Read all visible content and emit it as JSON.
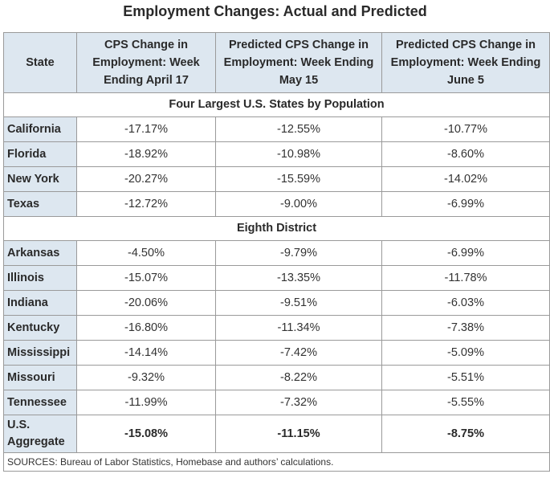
{
  "title": "Employment Changes: Actual and Predicted",
  "headers": {
    "state": "State",
    "col1": "CPS Change in Employment: Week Ending April 17",
    "col2": "Predicted CPS Change in Employment: Week Ending May 15",
    "col3": "Predicted CPS Change in Employment: Week Ending June 5"
  },
  "sections": [
    {
      "label": "Four Largest U.S. States by Population",
      "rows": [
        {
          "state": "California",
          "v1": "-17.17%",
          "v2": "-12.55%",
          "v3": "-10.77%"
        },
        {
          "state": "Florida",
          "v1": "-18.92%",
          "v2": "-10.98%",
          "v3": "-8.60%"
        },
        {
          "state": "New York",
          "v1": "-20.27%",
          "v2": "-15.59%",
          "v3": "-14.02%"
        },
        {
          "state": "Texas",
          "v1": "-12.72%",
          "v2": "-9.00%",
          "v3": "-6.99%"
        }
      ]
    },
    {
      "label": "Eighth District",
      "rows": [
        {
          "state": "Arkansas",
          "v1": "-4.50%",
          "v2": "-9.79%",
          "v3": "-6.99%"
        },
        {
          "state": "Illinois",
          "v1": "-15.07%",
          "v2": "-13.35%",
          "v3": "-11.78%"
        },
        {
          "state": "Indiana",
          "v1": "-20.06%",
          "v2": "-9.51%",
          "v3": "-6.03%"
        },
        {
          "state": "Kentucky",
          "v1": "-16.80%",
          "v2": "-11.34%",
          "v3": "-7.38%"
        },
        {
          "state": "Mississippi",
          "v1": "-14.14%",
          "v2": "-7.42%",
          "v3": "-5.09%"
        },
        {
          "state": "Missouri",
          "v1": "-9.32%",
          "v2": "-8.22%",
          "v3": "-5.51%"
        },
        {
          "state": "Tennessee",
          "v1": "-11.99%",
          "v2": "-7.32%",
          "v3": "-5.55%"
        }
      ]
    }
  ],
  "aggregate": {
    "state": "U.S. Aggregate",
    "v1": "-15.08%",
    "v2": "-11.15%",
    "v3": "-8.75%"
  },
  "source": "SOURCES: Bureau of Labor Statistics, Homebase and authors’ calculations.",
  "colors": {
    "header_bg": "#dde7f0",
    "border": "#9a9a9a"
  }
}
